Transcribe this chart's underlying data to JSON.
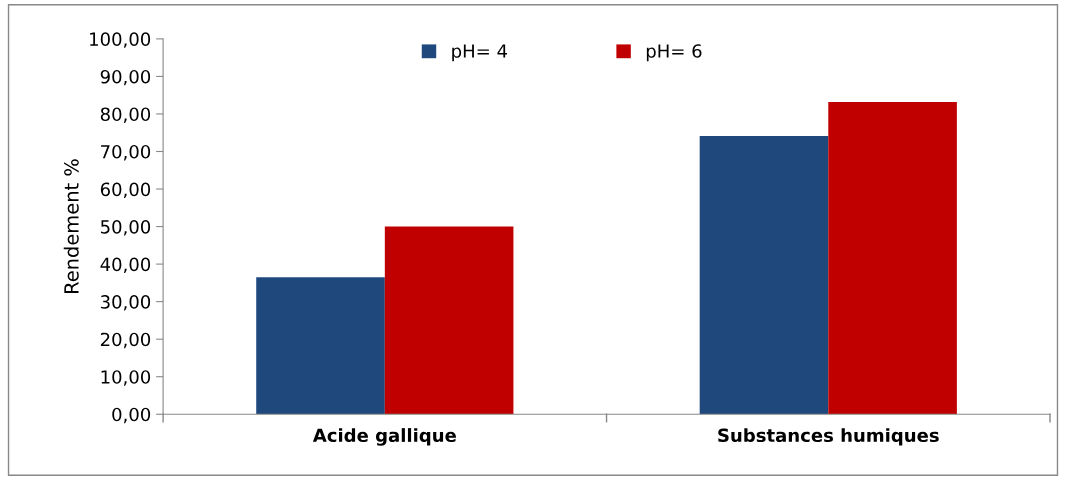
{
  "chart_data": {
    "type": "bar",
    "ylabel": "Rendement %",
    "categories": [
      "Acide gallique",
      "Substances humiques"
    ],
    "series": [
      {
        "name": "pH= 4",
        "color": "#1f497d",
        "values": [
          36.5,
          74.1
        ]
      },
      {
        "name": "pH= 6",
        "color": "#c00000",
        "values": [
          50.0,
          83.2
        ]
      }
    ],
    "ylim": [
      0,
      100
    ],
    "yticks": [
      {
        "value": 0,
        "label": "0,00"
      },
      {
        "value": 10,
        "label": "10,00"
      },
      {
        "value": 20,
        "label": "20,00"
      },
      {
        "value": 30,
        "label": "30,00"
      },
      {
        "value": 40,
        "label": "40,00"
      },
      {
        "value": 50,
        "label": "50,00"
      },
      {
        "value": 60,
        "label": "60,00"
      },
      {
        "value": 70,
        "label": "70,00"
      },
      {
        "value": 80,
        "label": "80,00"
      },
      {
        "value": 90,
        "label": "90,00"
      },
      {
        "value": 100,
        "label": "100,00"
      }
    ],
    "grid": false,
    "legend": "top"
  }
}
